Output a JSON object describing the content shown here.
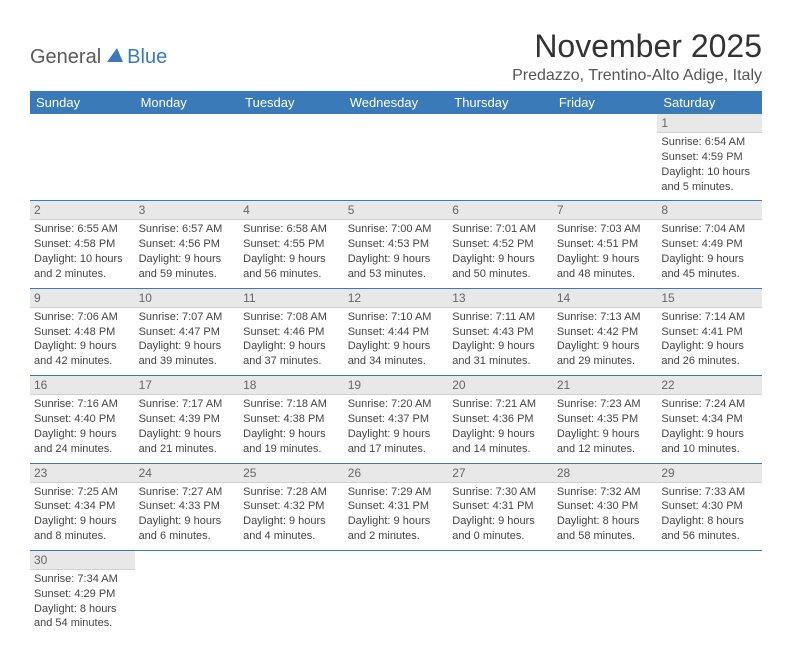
{
  "logo": {
    "text1": "General",
    "text2": "Blue",
    "color_general": "#5a5a5a",
    "color_blue": "#3a7ab8"
  },
  "title": "November 2025",
  "location": "Predazzo, Trentino-Alto Adige, Italy",
  "header_bg": "#3a7ab8",
  "header_fg": "#ffffff",
  "daynum_bg": "#e8e8e8",
  "border_color": "#3a7ab8",
  "weekdays": [
    "Sunday",
    "Monday",
    "Tuesday",
    "Wednesday",
    "Thursday",
    "Friday",
    "Saturday"
  ],
  "weeks": [
    [
      null,
      null,
      null,
      null,
      null,
      null,
      {
        "n": "1",
        "sr": "Sunrise: 6:54 AM",
        "ss": "Sunset: 4:59 PM",
        "dl": "Daylight: 10 hours and 5 minutes."
      }
    ],
    [
      {
        "n": "2",
        "sr": "Sunrise: 6:55 AM",
        "ss": "Sunset: 4:58 PM",
        "dl": "Daylight: 10 hours and 2 minutes."
      },
      {
        "n": "3",
        "sr": "Sunrise: 6:57 AM",
        "ss": "Sunset: 4:56 PM",
        "dl": "Daylight: 9 hours and 59 minutes."
      },
      {
        "n": "4",
        "sr": "Sunrise: 6:58 AM",
        "ss": "Sunset: 4:55 PM",
        "dl": "Daylight: 9 hours and 56 minutes."
      },
      {
        "n": "5",
        "sr": "Sunrise: 7:00 AM",
        "ss": "Sunset: 4:53 PM",
        "dl": "Daylight: 9 hours and 53 minutes."
      },
      {
        "n": "6",
        "sr": "Sunrise: 7:01 AM",
        "ss": "Sunset: 4:52 PM",
        "dl": "Daylight: 9 hours and 50 minutes."
      },
      {
        "n": "7",
        "sr": "Sunrise: 7:03 AM",
        "ss": "Sunset: 4:51 PM",
        "dl": "Daylight: 9 hours and 48 minutes."
      },
      {
        "n": "8",
        "sr": "Sunrise: 7:04 AM",
        "ss": "Sunset: 4:49 PM",
        "dl": "Daylight: 9 hours and 45 minutes."
      }
    ],
    [
      {
        "n": "9",
        "sr": "Sunrise: 7:06 AM",
        "ss": "Sunset: 4:48 PM",
        "dl": "Daylight: 9 hours and 42 minutes."
      },
      {
        "n": "10",
        "sr": "Sunrise: 7:07 AM",
        "ss": "Sunset: 4:47 PM",
        "dl": "Daylight: 9 hours and 39 minutes."
      },
      {
        "n": "11",
        "sr": "Sunrise: 7:08 AM",
        "ss": "Sunset: 4:46 PM",
        "dl": "Daylight: 9 hours and 37 minutes."
      },
      {
        "n": "12",
        "sr": "Sunrise: 7:10 AM",
        "ss": "Sunset: 4:44 PM",
        "dl": "Daylight: 9 hours and 34 minutes."
      },
      {
        "n": "13",
        "sr": "Sunrise: 7:11 AM",
        "ss": "Sunset: 4:43 PM",
        "dl": "Daylight: 9 hours and 31 minutes."
      },
      {
        "n": "14",
        "sr": "Sunrise: 7:13 AM",
        "ss": "Sunset: 4:42 PM",
        "dl": "Daylight: 9 hours and 29 minutes."
      },
      {
        "n": "15",
        "sr": "Sunrise: 7:14 AM",
        "ss": "Sunset: 4:41 PM",
        "dl": "Daylight: 9 hours and 26 minutes."
      }
    ],
    [
      {
        "n": "16",
        "sr": "Sunrise: 7:16 AM",
        "ss": "Sunset: 4:40 PM",
        "dl": "Daylight: 9 hours and 24 minutes."
      },
      {
        "n": "17",
        "sr": "Sunrise: 7:17 AM",
        "ss": "Sunset: 4:39 PM",
        "dl": "Daylight: 9 hours and 21 minutes."
      },
      {
        "n": "18",
        "sr": "Sunrise: 7:18 AM",
        "ss": "Sunset: 4:38 PM",
        "dl": "Daylight: 9 hours and 19 minutes."
      },
      {
        "n": "19",
        "sr": "Sunrise: 7:20 AM",
        "ss": "Sunset: 4:37 PM",
        "dl": "Daylight: 9 hours and 17 minutes."
      },
      {
        "n": "20",
        "sr": "Sunrise: 7:21 AM",
        "ss": "Sunset: 4:36 PM",
        "dl": "Daylight: 9 hours and 14 minutes."
      },
      {
        "n": "21",
        "sr": "Sunrise: 7:23 AM",
        "ss": "Sunset: 4:35 PM",
        "dl": "Daylight: 9 hours and 12 minutes."
      },
      {
        "n": "22",
        "sr": "Sunrise: 7:24 AM",
        "ss": "Sunset: 4:34 PM",
        "dl": "Daylight: 9 hours and 10 minutes."
      }
    ],
    [
      {
        "n": "23",
        "sr": "Sunrise: 7:25 AM",
        "ss": "Sunset: 4:34 PM",
        "dl": "Daylight: 9 hours and 8 minutes."
      },
      {
        "n": "24",
        "sr": "Sunrise: 7:27 AM",
        "ss": "Sunset: 4:33 PM",
        "dl": "Daylight: 9 hours and 6 minutes."
      },
      {
        "n": "25",
        "sr": "Sunrise: 7:28 AM",
        "ss": "Sunset: 4:32 PM",
        "dl": "Daylight: 9 hours and 4 minutes."
      },
      {
        "n": "26",
        "sr": "Sunrise: 7:29 AM",
        "ss": "Sunset: 4:31 PM",
        "dl": "Daylight: 9 hours and 2 minutes."
      },
      {
        "n": "27",
        "sr": "Sunrise: 7:30 AM",
        "ss": "Sunset: 4:31 PM",
        "dl": "Daylight: 9 hours and 0 minutes."
      },
      {
        "n": "28",
        "sr": "Sunrise: 7:32 AM",
        "ss": "Sunset: 4:30 PM",
        "dl": "Daylight: 8 hours and 58 minutes."
      },
      {
        "n": "29",
        "sr": "Sunrise: 7:33 AM",
        "ss": "Sunset: 4:30 PM",
        "dl": "Daylight: 8 hours and 56 minutes."
      }
    ],
    [
      {
        "n": "30",
        "sr": "Sunrise: 7:34 AM",
        "ss": "Sunset: 4:29 PM",
        "dl": "Daylight: 8 hours and 54 minutes."
      },
      null,
      null,
      null,
      null,
      null,
      null
    ]
  ]
}
